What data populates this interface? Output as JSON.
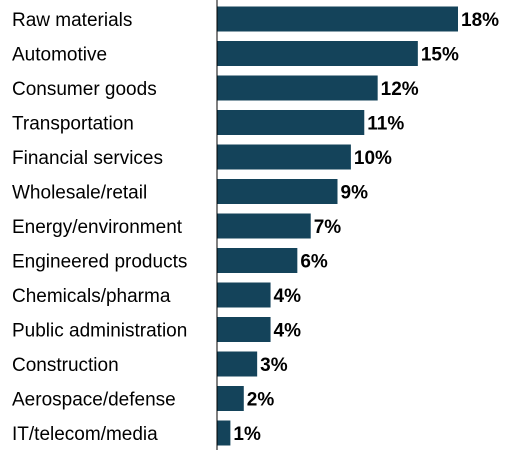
{
  "colors": {
    "bar": "#14435a",
    "axis": "#000000"
  },
  "chart_data": {
    "type": "bar",
    "orientation": "horizontal",
    "categories": [
      "Raw materials",
      "Automotive",
      "Consumer goods",
      "Transportation",
      "Financial services",
      "Wholesale/retail",
      "Energy/environment",
      "Engineered products",
      "Chemicals/pharma",
      "Public administration",
      "Construction",
      "Aerospace/defense",
      "IT/telecom/media"
    ],
    "values": [
      18,
      15,
      12,
      11,
      10,
      9,
      7,
      6,
      4,
      4,
      3,
      2,
      1
    ],
    "value_labels": [
      "18%",
      "15%",
      "12%",
      "11%",
      "10%",
      "9%",
      "7%",
      "6%",
      "4%",
      "4%",
      "3%",
      "2%",
      "1%"
    ],
    "xlim": [
      0,
      18
    ],
    "grid": false,
    "legend": "none"
  }
}
